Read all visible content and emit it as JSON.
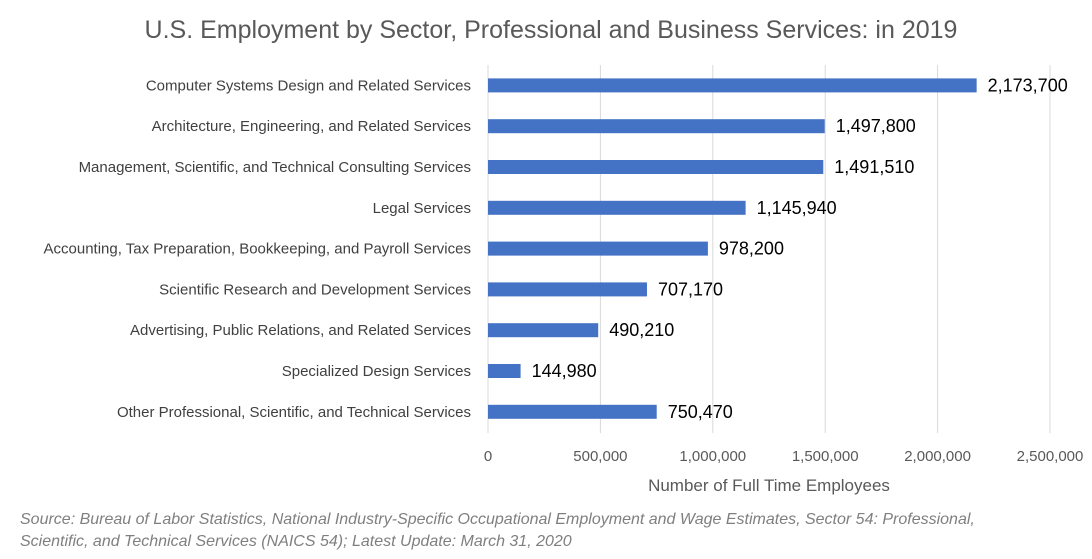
{
  "chart_data": {
    "type": "bar",
    "orientation": "horizontal",
    "title": "U.S. Employment by Sector, Professional and Business Services: in 2019",
    "xlabel": "Number of Full Time Employees",
    "ylabel": "",
    "xlim": [
      0,
      2500000
    ],
    "tick_values": [
      0,
      500000,
      1000000,
      1500000,
      2000000,
      2500000
    ],
    "tick_labels": [
      "0",
      "500,000",
      "1,000,000",
      "1,500,000",
      "2,000,000",
      "2,500,000"
    ],
    "grid": true,
    "bar_color": "#4472C4",
    "categories": [
      "Computer Systems Design and Related Services",
      "Architecture, Engineering, and Related Services",
      "Management, Scientific, and Technical Consulting Services",
      "Legal Services",
      "Accounting, Tax Preparation, Bookkeeping, and Payroll Services",
      "Scientific Research and Development Services",
      "Advertising, Public Relations, and Related Services",
      "Specialized Design Services",
      "Other Professional, Scientific, and Technical Services"
    ],
    "values": [
      2173700,
      1497800,
      1491510,
      1145940,
      978200,
      707170,
      490210,
      144980,
      750470
    ],
    "data_labels": [
      "2,173,700",
      "1,497,800",
      "1,491,510",
      "1,145,940",
      "978,200",
      "707,170",
      "490,210",
      "144,980",
      "750,470"
    ]
  },
  "source": "Source: Bureau of Labor Statistics, National Industry-Specific Occupational Employment and Wage Estimates, Sector 54: Professional, Scientific, and Technical Services (NAICS 54); Latest Update: March 31, 2020"
}
